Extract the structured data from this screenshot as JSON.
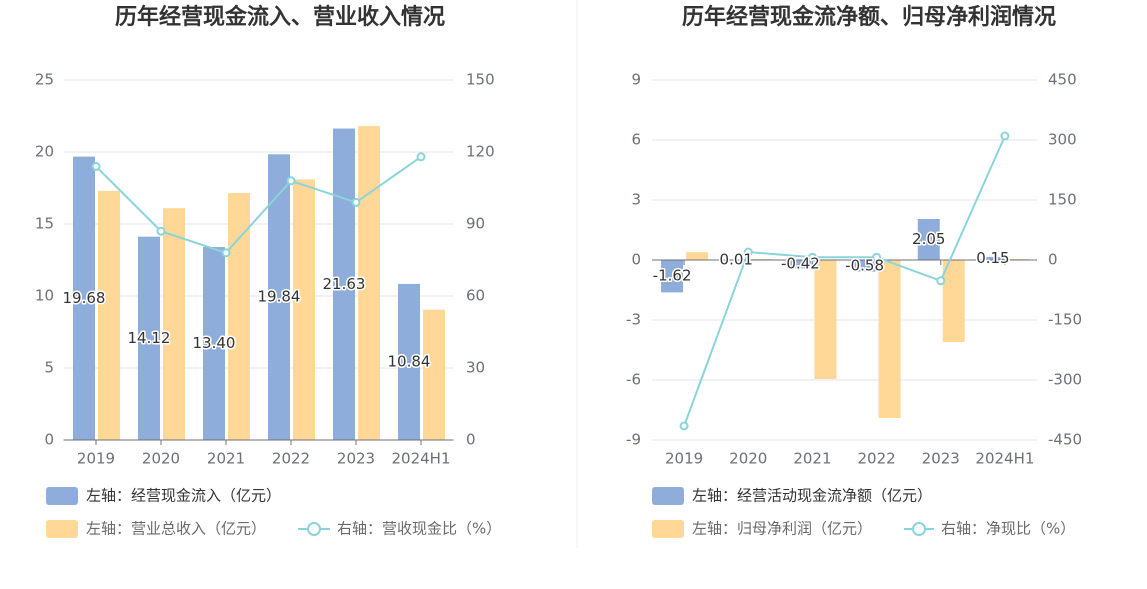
{
  "chart_data": [
    {
      "type": "bar",
      "title": "历年经营现金流入、营业收入情况",
      "categories": [
        "2019",
        "2020",
        "2021",
        "2022",
        "2023",
        "2024H1"
      ],
      "y_left": {
        "min": 0,
        "max": 25,
        "ticks": [
          0,
          5,
          10,
          15,
          20,
          25
        ]
      },
      "y_right": {
        "min": 0,
        "max": 150,
        "ticks": [
          0,
          30,
          60,
          90,
          120,
          150
        ]
      },
      "grid": true,
      "legend_position": "bottom-left",
      "series": [
        {
          "name": "左轴：经营现金流入（亿元）",
          "type": "bar",
          "axis": "left",
          "color": "#8EADDB",
          "show_labels": true,
          "values": [
            19.68,
            14.12,
            13.4,
            19.84,
            21.63,
            10.84
          ]
        },
        {
          "name": "左轴：营业总收入（亿元）",
          "type": "bar",
          "axis": "left",
          "color": "#FFD898",
          "show_labels": false,
          "values": [
            17.3,
            16.1,
            17.15,
            18.1,
            21.8,
            9.05
          ]
        },
        {
          "name": "右轴：营收现金比（%）",
          "type": "line",
          "axis": "right",
          "color": "#8AD4DB",
          "show_labels": false,
          "values": [
            114,
            87,
            78,
            108,
            99,
            118
          ]
        }
      ]
    },
    {
      "type": "bar",
      "title": "历年经营现金流净额、归母净利润情况",
      "categories": [
        "2019",
        "2020",
        "2021",
        "2022",
        "2023",
        "2024H1"
      ],
      "y_left": {
        "min": -9,
        "max": 9,
        "ticks": [
          -9,
          -6,
          -3,
          0,
          3,
          6,
          9
        ]
      },
      "y_right": {
        "min": -450,
        "max": 450,
        "ticks": [
          -450,
          -300,
          -150,
          0,
          150,
          300,
          450
        ]
      },
      "grid": true,
      "legend_position": "bottom-left",
      "series": [
        {
          "name": "左轴：经营活动现金流净额（亿元）",
          "type": "bar",
          "axis": "left",
          "color": "#8EADDB",
          "show_labels": true,
          "values": [
            -1.62,
            0.01,
            -0.42,
            -0.58,
            2.05,
            0.15
          ]
        },
        {
          "name": "左轴：归母净利润（亿元）",
          "type": "bar",
          "axis": "left",
          "color": "#FFD898",
          "show_labels": false,
          "values": [
            0.39,
            0.05,
            -5.95,
            -7.9,
            -4.1,
            0.05
          ]
        },
        {
          "name": "右轴：净现比（%）",
          "type": "line",
          "axis": "right",
          "color": "#8AD4DB",
          "show_labels": false,
          "values": [
            -415,
            20,
            7,
            7,
            -52,
            310
          ]
        }
      ]
    }
  ]
}
